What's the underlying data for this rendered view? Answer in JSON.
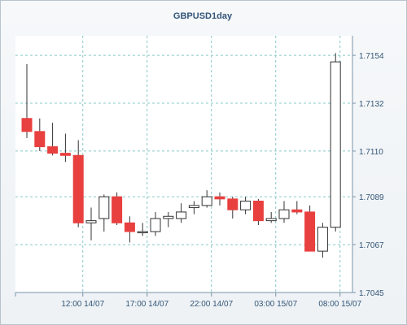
{
  "chart_data": {
    "type": "candlestick",
    "title": "GBPUSD1day",
    "xlabel": "",
    "ylabel": "",
    "ylim": [
      1.7045,
      1.7163
    ],
    "y_ticks": [
      "1.7045",
      "1.7067",
      "1.7089",
      "1.7110",
      "1.7132",
      "1.7154"
    ],
    "x_ticks": [
      {
        "label": "12:00 14/07",
        "index": 4.35
      },
      {
        "label": "17:00 14/07",
        "index": 9.35
      },
      {
        "label": "22:00 14/07",
        "index": 14.35
      },
      {
        "label": "03:00 15/07",
        "index": 19.35
      },
      {
        "label": "08:00 15/07",
        "index": 24.35
      }
    ],
    "grid": true,
    "colors": {
      "up": "#ffffff",
      "down": "#e8403f",
      "wick": "#333333",
      "border": "#333333"
    },
    "candles": [
      {
        "open": 1.7125,
        "high": 1.715,
        "low": 1.7116,
        "close": 1.7119
      },
      {
        "open": 1.7119,
        "high": 1.7125,
        "low": 1.711,
        "close": 1.7112
      },
      {
        "open": 1.7112,
        "high": 1.7123,
        "low": 1.7108,
        "close": 1.7109
      },
      {
        "open": 1.7109,
        "high": 1.7118,
        "low": 1.7105,
        "close": 1.7108
      },
      {
        "open": 1.7108,
        "high": 1.7115,
        "low": 1.7075,
        "close": 1.7077
      },
      {
        "open": 1.7077,
        "high": 1.7084,
        "low": 1.7069,
        "close": 1.7078
      },
      {
        "open": 1.7079,
        "high": 1.709,
        "low": 1.7073,
        "close": 1.7089
      },
      {
        "open": 1.7089,
        "high": 1.7091,
        "low": 1.7076,
        "close": 1.7077
      },
      {
        "open": 1.7077,
        "high": 1.708,
        "low": 1.7068,
        "close": 1.7073
      },
      {
        "open": 1.7073,
        "high": 1.7077,
        "low": 1.7071,
        "close": 1.7073
      },
      {
        "open": 1.7073,
        "high": 1.7082,
        "low": 1.7071,
        "close": 1.7079
      },
      {
        "open": 1.7079,
        "high": 1.7082,
        "low": 1.7075,
        "close": 1.708
      },
      {
        "open": 1.7079,
        "high": 1.7086,
        "low": 1.7077,
        "close": 1.7082
      },
      {
        "open": 1.7084,
        "high": 1.7087,
        "low": 1.7081,
        "close": 1.7085
      },
      {
        "open": 1.7085,
        "high": 1.7092,
        "low": 1.7084,
        "close": 1.7089
      },
      {
        "open": 1.7089,
        "high": 1.7091,
        "low": 1.7085,
        "close": 1.7088
      },
      {
        "open": 1.7088,
        "high": 1.7089,
        "low": 1.7079,
        "close": 1.7083
      },
      {
        "open": 1.7083,
        "high": 1.7089,
        "low": 1.7081,
        "close": 1.7087
      },
      {
        "open": 1.7087,
        "high": 1.7088,
        "low": 1.7076,
        "close": 1.7078
      },
      {
        "open": 1.7078,
        "high": 1.7082,
        "low": 1.7077,
        "close": 1.7079
      },
      {
        "open": 1.7079,
        "high": 1.7087,
        "low": 1.7077,
        "close": 1.7083
      },
      {
        "open": 1.7083,
        "high": 1.7087,
        "low": 1.7081,
        "close": 1.7082
      },
      {
        "open": 1.7082,
        "high": 1.7085,
        "low": 1.7064,
        "close": 1.7064
      },
      {
        "open": 1.7064,
        "high": 1.7077,
        "low": 1.7061,
        "close": 1.7075
      },
      {
        "open": 1.7075,
        "high": 1.7155,
        "low": 1.7073,
        "close": 1.7151
      }
    ]
  }
}
